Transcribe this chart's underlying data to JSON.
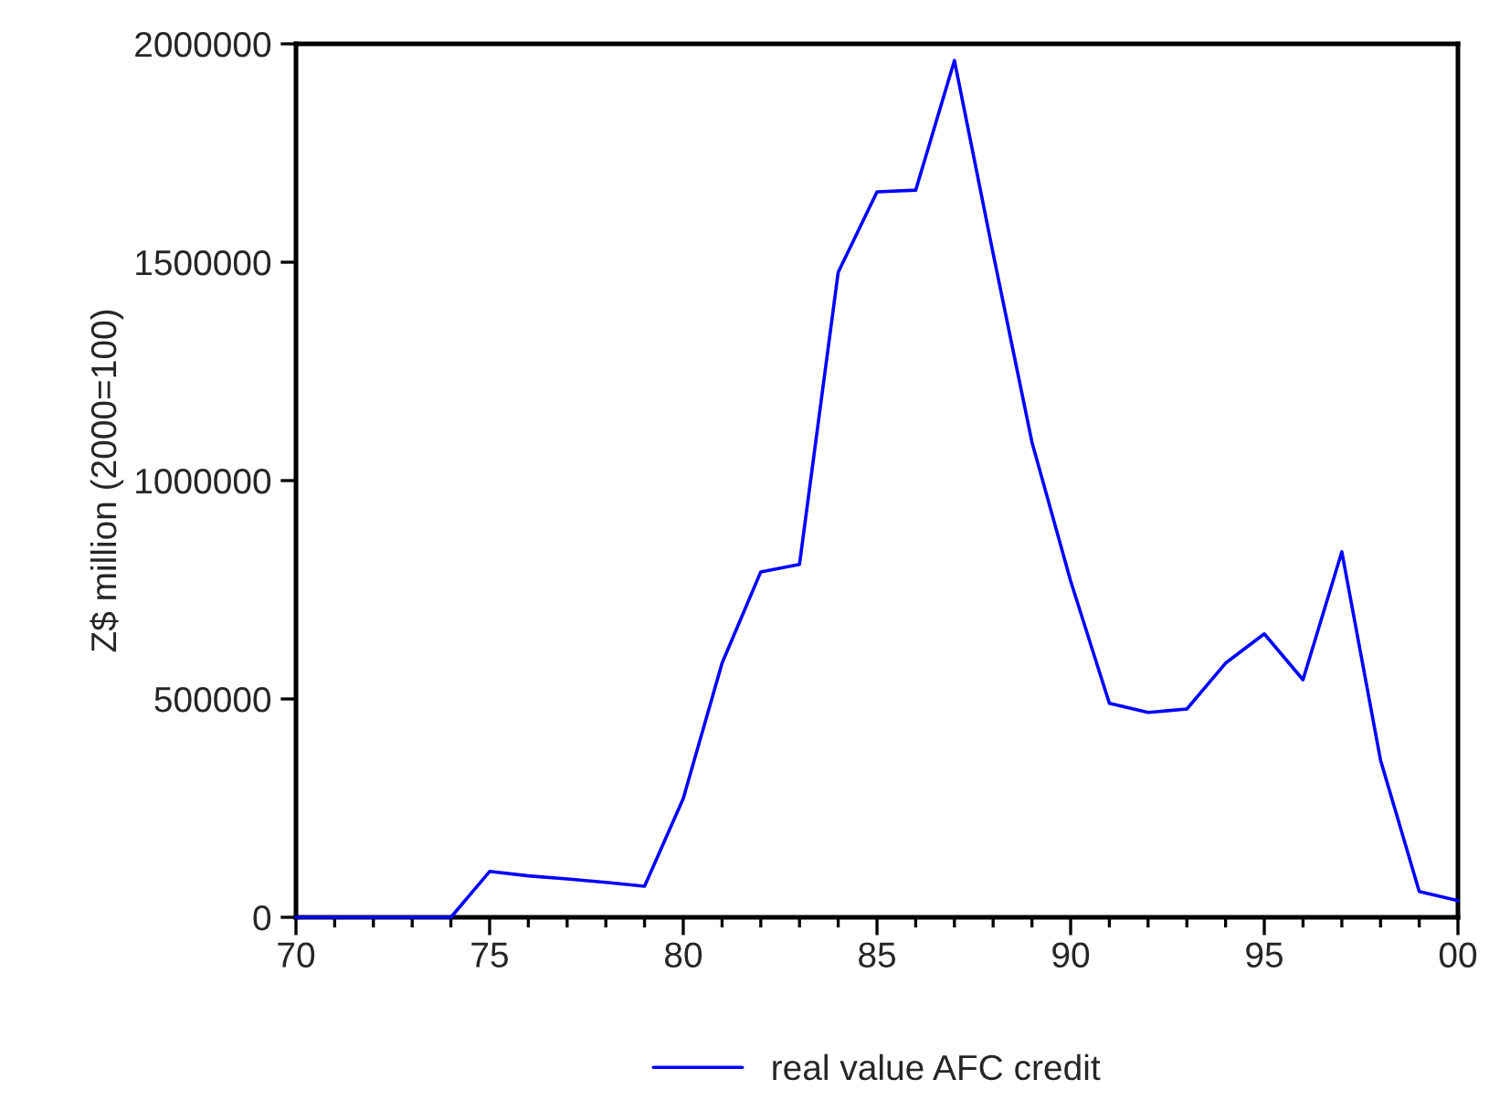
{
  "chart_data": {
    "type": "line",
    "ylabel": "Z$ million (2000=100)",
    "x": [
      "1970",
      "1971",
      "1972",
      "1973",
      "1974",
      "1975",
      "1976",
      "1977",
      "1978",
      "1979",
      "1980",
      "1981",
      "1982",
      "1983",
      "1984",
      "1985",
      "1986",
      "1987",
      "1988",
      "1989",
      "1990",
      "1991",
      "1992",
      "1993",
      "1994",
      "1995",
      "1996",
      "1997",
      "1998",
      "1999",
      "2000"
    ],
    "series": [
      {
        "name": "real value AFC credit",
        "color": "#0000ff",
        "values": [
          0,
          0,
          0,
          0,
          0,
          105000,
          95000,
          88000,
          80000,
          71000,
          272000,
          582000,
          791000,
          808000,
          1477000,
          1661000,
          1665000,
          1962000,
          1520000,
          1088000,
          770000,
          490000,
          469000,
          477000,
          582000,
          649000,
          544000,
          837000,
          360000,
          59000,
          38000
        ]
      }
    ],
    "xlim": [
      "1970",
      "2000"
    ],
    "xticks": [
      {
        "value": "1970",
        "label": "70"
      },
      {
        "value": "1971",
        "label": null
      },
      {
        "value": "1972",
        "label": null
      },
      {
        "value": "1973",
        "label": null
      },
      {
        "value": "1974",
        "label": null
      },
      {
        "value": "1975",
        "label": "75"
      },
      {
        "value": "1976",
        "label": null
      },
      {
        "value": "1977",
        "label": null
      },
      {
        "value": "1978",
        "label": null
      },
      {
        "value": "1979",
        "label": null
      },
      {
        "value": "1980",
        "label": "80"
      },
      {
        "value": "1981",
        "label": null
      },
      {
        "value": "1982",
        "label": null
      },
      {
        "value": "1983",
        "label": null
      },
      {
        "value": "1984",
        "label": null
      },
      {
        "value": "1985",
        "label": "85"
      },
      {
        "value": "1986",
        "label": null
      },
      {
        "value": "1987",
        "label": null
      },
      {
        "value": "1988",
        "label": null
      },
      {
        "value": "1989",
        "label": null
      },
      {
        "value": "1990",
        "label": "90"
      },
      {
        "value": "1991",
        "label": null
      },
      {
        "value": "1992",
        "label": null
      },
      {
        "value": "1993",
        "label": null
      },
      {
        "value": "1994",
        "label": null
      },
      {
        "value": "1995",
        "label": "95"
      },
      {
        "value": "1996",
        "label": null
      },
      {
        "value": "1997",
        "label": null
      },
      {
        "value": "1998",
        "label": null
      },
      {
        "value": "1999",
        "label": null
      },
      {
        "value": "2000",
        "label": "00"
      }
    ],
    "ylim": [
      0,
      2000000
    ],
    "yticks": [
      0,
      500000,
      1000000,
      1500000,
      2000000
    ],
    "grid": false,
    "legend": "bottom",
    "line_style": "solid",
    "marker": "none"
  }
}
